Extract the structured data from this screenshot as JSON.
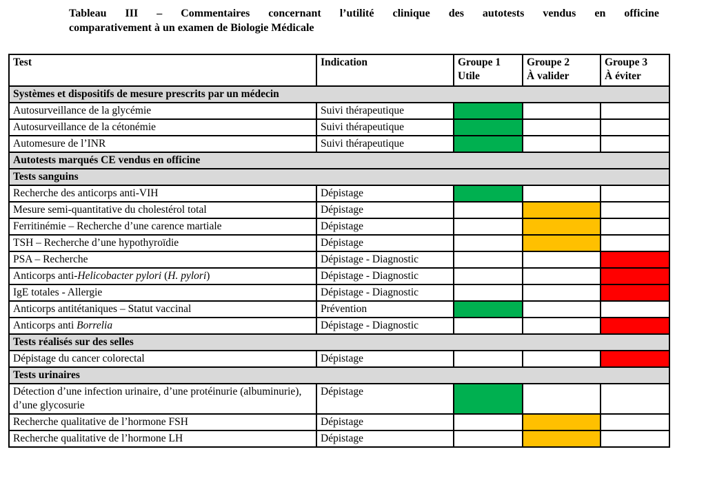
{
  "title": {
    "line1": "Tableau III – Commentaires concernant l’utilité clinique des autotests vendus en officine",
    "line2": "comparativement à un examen de Biologie Médicale"
  },
  "table": {
    "columns": [
      {
        "label": "Test",
        "sublabel": ""
      },
      {
        "label": "Indication",
        "sublabel": ""
      },
      {
        "label": "Groupe 1",
        "sublabel": "Utile"
      },
      {
        "label": "Groupe 2",
        "sublabel": "À valider"
      },
      {
        "label": "Groupe 3",
        "sublabel": "À éviter"
      }
    ],
    "colors": {
      "groupe1": "#00B050",
      "groupe2": "#FFC000",
      "groupe3": "#FF0000",
      "section_bg": "#D9D9D9",
      "border": "#000000"
    },
    "rows": [
      {
        "type": "section",
        "label": "Systèmes et dispositifs de mesure prescrits par un médecin"
      },
      {
        "type": "test",
        "test": [
          {
            "text": "Autosurveillance de la glycémie"
          }
        ],
        "indication": "Suivi thérapeutique",
        "groupe": 1
      },
      {
        "type": "test",
        "test": [
          {
            "text": "Autosurveillance de la cétonémie"
          }
        ],
        "indication": "Suivi thérapeutique",
        "groupe": 1
      },
      {
        "type": "test",
        "test": [
          {
            "text": "Automesure de l’INR"
          }
        ],
        "indication": "Suivi thérapeutique",
        "groupe": 1
      },
      {
        "type": "section",
        "label": "Autotests marqués CE vendus en officine"
      },
      {
        "type": "section",
        "label": "Tests sanguins"
      },
      {
        "type": "test",
        "test": [
          {
            "text": "Recherche des anticorps anti-VIH"
          }
        ],
        "indication": "Dépistage",
        "groupe": 1
      },
      {
        "type": "test",
        "test": [
          {
            "text": "Mesure semi-quantitative du cholestérol total"
          }
        ],
        "indication": "Dépistage",
        "groupe": 2
      },
      {
        "type": "test",
        "test": [
          {
            "text": "Ferritinémie – Recherche d’une carence martiale"
          }
        ],
        "indication": "Dépistage",
        "groupe": 2
      },
      {
        "type": "test",
        "test": [
          {
            "text": "TSH – Recherche d’une hypothyroïdie"
          }
        ],
        "indication": "Dépistage",
        "groupe": 2
      },
      {
        "type": "test",
        "test": [
          {
            "text": "PSA – Recherche"
          }
        ],
        "indication": "Dépistage - Diagnostic",
        "groupe": 3
      },
      {
        "type": "test",
        "test": [
          {
            "text": "Anticorps anti-"
          },
          {
            "text": "Helicobacter pylori",
            "italic": true
          },
          {
            "text": " ("
          },
          {
            "text": "H. pylori",
            "italic": true
          },
          {
            "text": ")"
          }
        ],
        "indication": "Dépistage - Diagnostic",
        "groupe": 3
      },
      {
        "type": "test",
        "test": [
          {
            "text": "IgE totales - Allergie"
          }
        ],
        "indication": "Dépistage - Diagnostic",
        "groupe": 3
      },
      {
        "type": "test",
        "test": [
          {
            "text": "Anticorps antitétaniques – Statut vaccinal"
          }
        ],
        "indication": "Prévention",
        "groupe": 1
      },
      {
        "type": "test",
        "test": [
          {
            "text": "Anticorps anti "
          },
          {
            "text": "Borrelia",
            "italic": true
          }
        ],
        "indication": "Dépistage - Diagnostic",
        "groupe": 3
      },
      {
        "type": "section",
        "label": "Tests réalisés sur des selles"
      },
      {
        "type": "test",
        "test": [
          {
            "text": "Dépistage du cancer colorectal"
          }
        ],
        "indication": "Dépistage",
        "groupe": 3
      },
      {
        "type": "section",
        "label": "Tests urinaires"
      },
      {
        "type": "test",
        "test": [
          {
            "text": "Détection d’une infection urinaire, d’une protéinurie (albuminurie), d’une glycosurie"
          }
        ],
        "indication": "Dépistage",
        "groupe": 1
      },
      {
        "type": "test",
        "test": [
          {
            "text": "Recherche qualitative de l’hormone FSH"
          }
        ],
        "indication": "Dépistage",
        "groupe": 2
      },
      {
        "type": "test",
        "test": [
          {
            "text": "Recherche qualitative de l’hormone LH"
          }
        ],
        "indication": "Dépistage",
        "groupe": 2
      }
    ]
  }
}
